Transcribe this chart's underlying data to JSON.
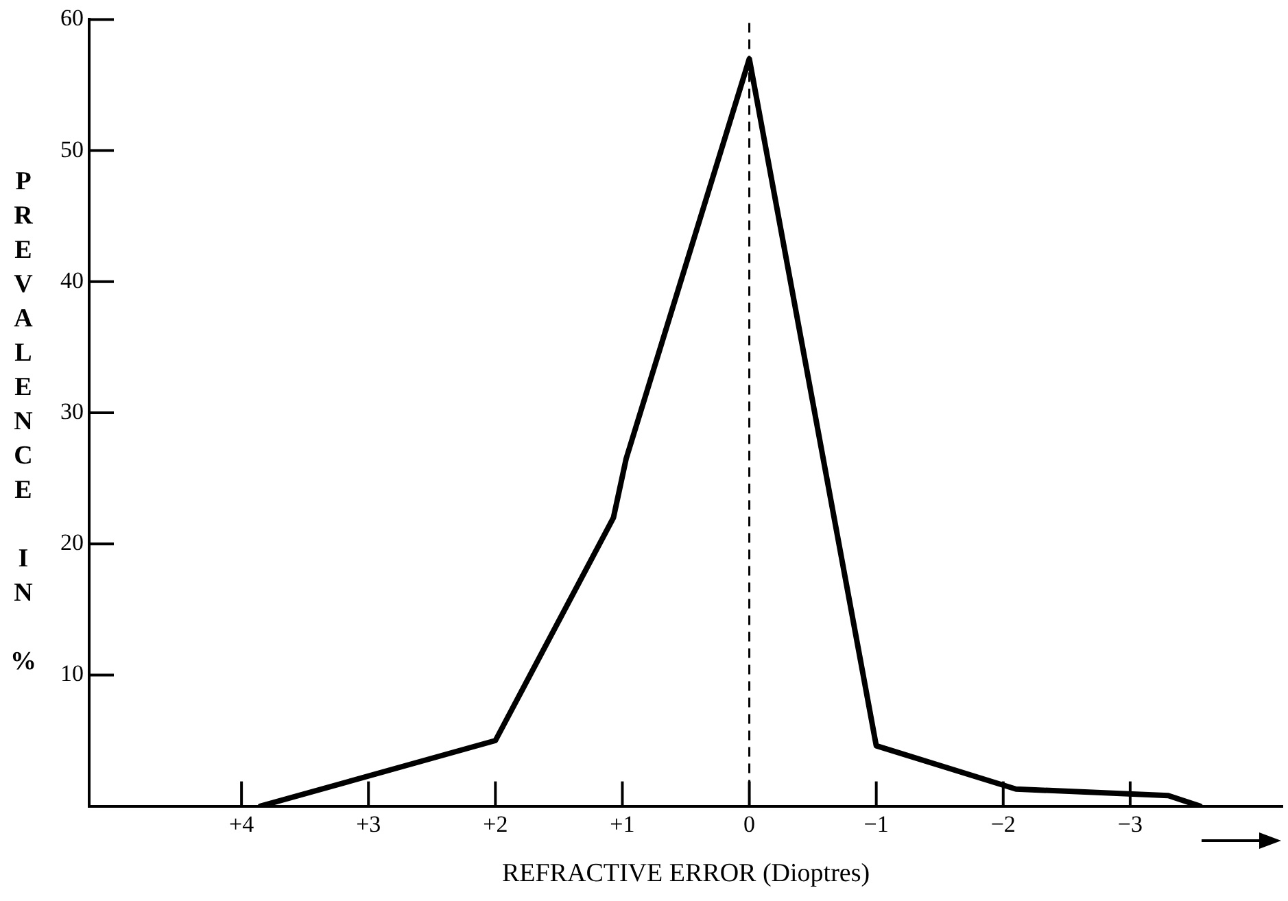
{
  "chart_data": {
    "type": "line",
    "xlabel": "REFRACTIVE ERROR (Dioptres)",
    "ylabel": "PREVALENCE IN %",
    "x": [
      3.85,
      2,
      1.07,
      0.97,
      0,
      -1,
      -2.1,
      -3.3,
      -3.55
    ],
    "series": [
      {
        "color": "#000000",
        "values": [
          0,
          5,
          22,
          26.5,
          57,
          4.6,
          1.3,
          0.8,
          0
        ]
      }
    ],
    "xlim": [
      5.2,
      -4.2
    ],
    "xticks": [
      {
        "value": 4,
        "label": "+4"
      },
      {
        "value": 3,
        "label": "+3"
      },
      {
        "value": 2,
        "label": "+2"
      },
      {
        "value": 1,
        "label": "+1"
      },
      0,
      {
        "value": -1,
        "label": "−1"
      },
      {
        "value": -2,
        "label": "−2"
      },
      {
        "value": -3,
        "label": "−3"
      }
    ],
    "ylim": [
      0,
      60
    ],
    "yticks": [
      10,
      20,
      30,
      40,
      50,
      60
    ],
    "ref_lines": [
      {
        "axis": "x",
        "value": 0,
        "color": "#000000",
        "line_style": "dashed"
      }
    ],
    "grid": false,
    "legend": false,
    "marker": "none",
    "line_style": "solid"
  }
}
